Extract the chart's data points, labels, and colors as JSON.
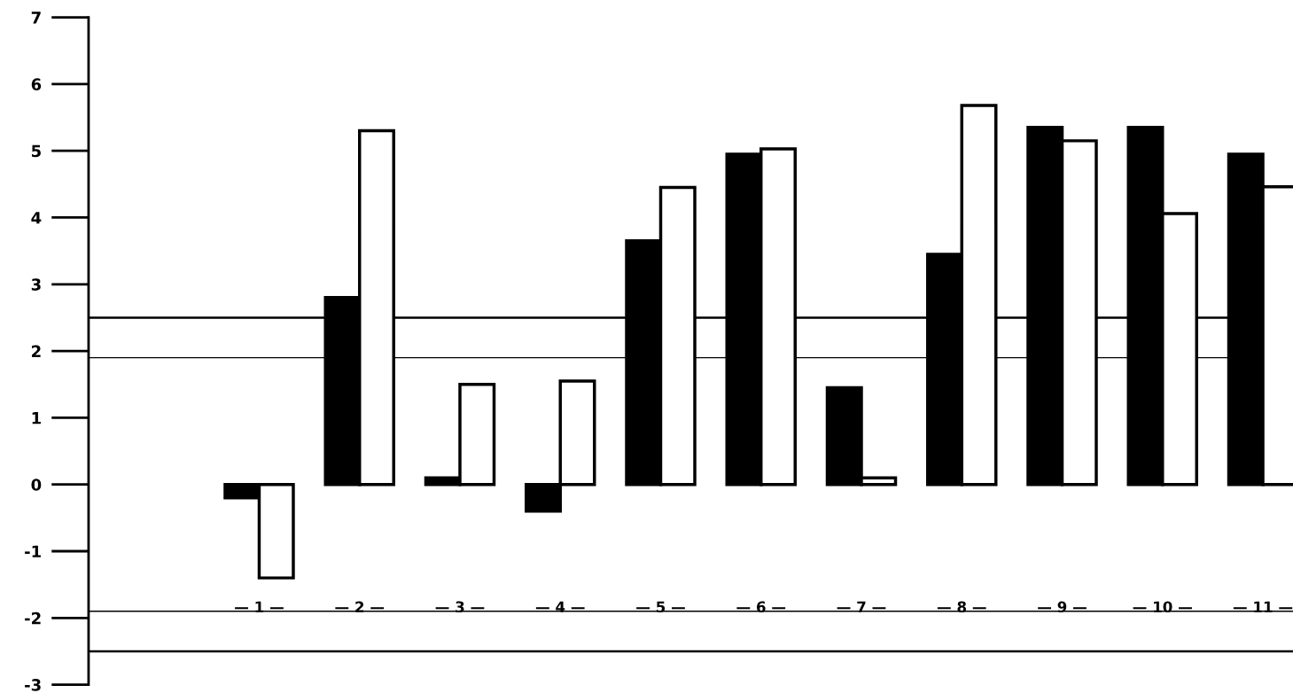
{
  "chart_data": {
    "type": "bar",
    "categories": [
      null,
      "— 1 —",
      "— 2 —",
      "— 3 —",
      "— 4 —",
      "— 5 —",
      "— 6 —",
      "— 7 —",
      "— 8 —",
      "— 9 —",
      "— 10 —",
      "— 11 —"
    ],
    "series": [
      {
        "color": "#000000",
        "values": [
          null,
          -0.2,
          2.8,
          0.1,
          -0.4,
          3.65,
          4.95,
          1.45,
          3.45,
          5.35,
          5.35,
          4.95
        ]
      },
      {
        "color": "#ffffff",
        "values": [
          null,
          -1.4,
          5.3,
          1.5,
          1.55,
          4.45,
          5.03,
          0.1,
          5.68,
          5.15,
          4.06,
          4.46
        ]
      }
    ],
    "ylim": [
      -3,
      7
    ],
    "yticks": [
      -3,
      -2,
      -1,
      0,
      1,
      2,
      3,
      4,
      5,
      6,
      7
    ],
    "ref_lines": [
      {
        "axis": "y",
        "value": 2.5,
        "color": "#000000"
      },
      {
        "axis": "y",
        "value": 1.9,
        "color": "#000000"
      },
      {
        "axis": "y",
        "value": -1.9,
        "color": "#000000"
      },
      {
        "axis": "y",
        "value": -2.5,
        "color": "#000000"
      }
    ],
    "grid": false
  }
}
